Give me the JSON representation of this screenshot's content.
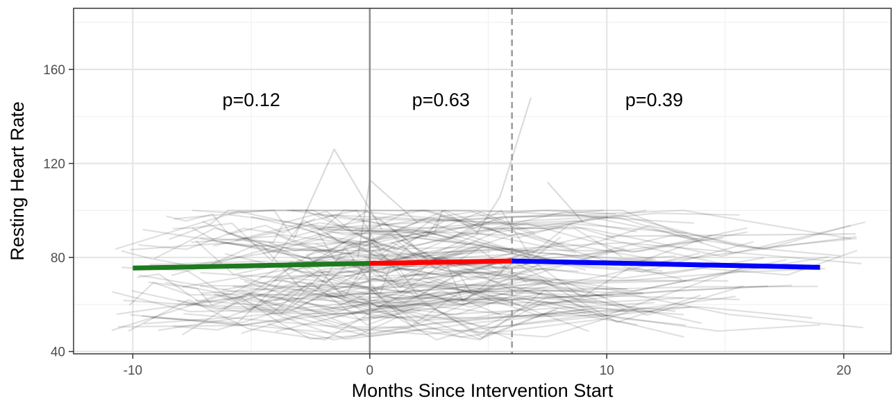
{
  "chart_data": {
    "type": "line",
    "title": "",
    "xlabel": "Months Since Intervention Start",
    "ylabel": "Resting Heart Rate",
    "xlim": [
      -12.5,
      22
    ],
    "ylim": [
      39,
      186
    ],
    "x_ticks": [
      -10,
      0,
      10,
      20
    ],
    "x_tick_labels": [
      "-10",
      "0",
      "10",
      "20"
    ],
    "y_ticks": [
      40,
      80,
      120,
      160
    ],
    "y_tick_labels": [
      "40",
      "80",
      "120",
      "160"
    ],
    "grid": true,
    "vertical_lines": [
      {
        "x": 0,
        "style": "solid",
        "color": "#8c8c8c"
      },
      {
        "x": 6,
        "style": "dashed",
        "color": "#999999"
      }
    ],
    "fit_segments": [
      {
        "x": [
          -10,
          0
        ],
        "y": [
          75.5,
          77.5
        ],
        "color": "#1e7a1e"
      },
      {
        "x": [
          0,
          6
        ],
        "y": [
          77.5,
          78.5
        ],
        "color": "#ff0000"
      },
      {
        "x": [
          6,
          19
        ],
        "y": [
          78.5,
          75.8
        ],
        "color": "#0000ff"
      }
    ],
    "annotations": [
      {
        "text": "p=0.12",
        "x": -5,
        "y": 147
      },
      {
        "text": "p=0.63",
        "x": 3,
        "y": 147
      },
      {
        "text": "p=0.39",
        "x": 12,
        "y": 147
      }
    ],
    "background_trajectories": {
      "count": 140,
      "x_range": [
        -11,
        20.5
      ],
      "y_range": [
        45,
        148
      ],
      "color": "#000000",
      "opacity": 0.12
    }
  }
}
